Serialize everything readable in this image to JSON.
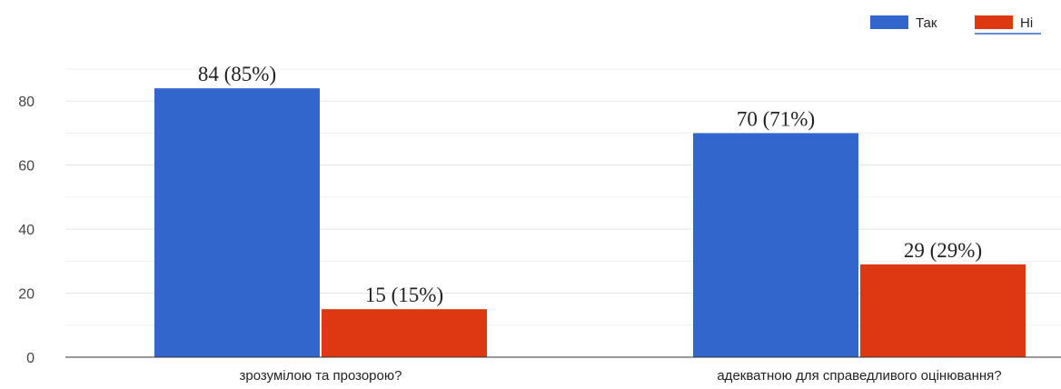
{
  "chart_data": {
    "type": "bar",
    "categories": [
      "зрозумілою та прозорою?",
      "адекватною для справедливого оцінювання?"
    ],
    "series": [
      {
        "name": "Так",
        "color": "#3366cc",
        "values": [
          84,
          70
        ],
        "labels": [
          "84 (85%)",
          "70 (71%)"
        ]
      },
      {
        "name": "Ні",
        "color": "#dc3912",
        "values": [
          15,
          29
        ],
        "labels": [
          "15 (15%)",
          "29 (29%)"
        ]
      }
    ],
    "yticks": [
      0,
      20,
      40,
      60,
      80
    ],
    "ylim": [
      0,
      100
    ],
    "grid": true,
    "legend_position": "top-right"
  }
}
